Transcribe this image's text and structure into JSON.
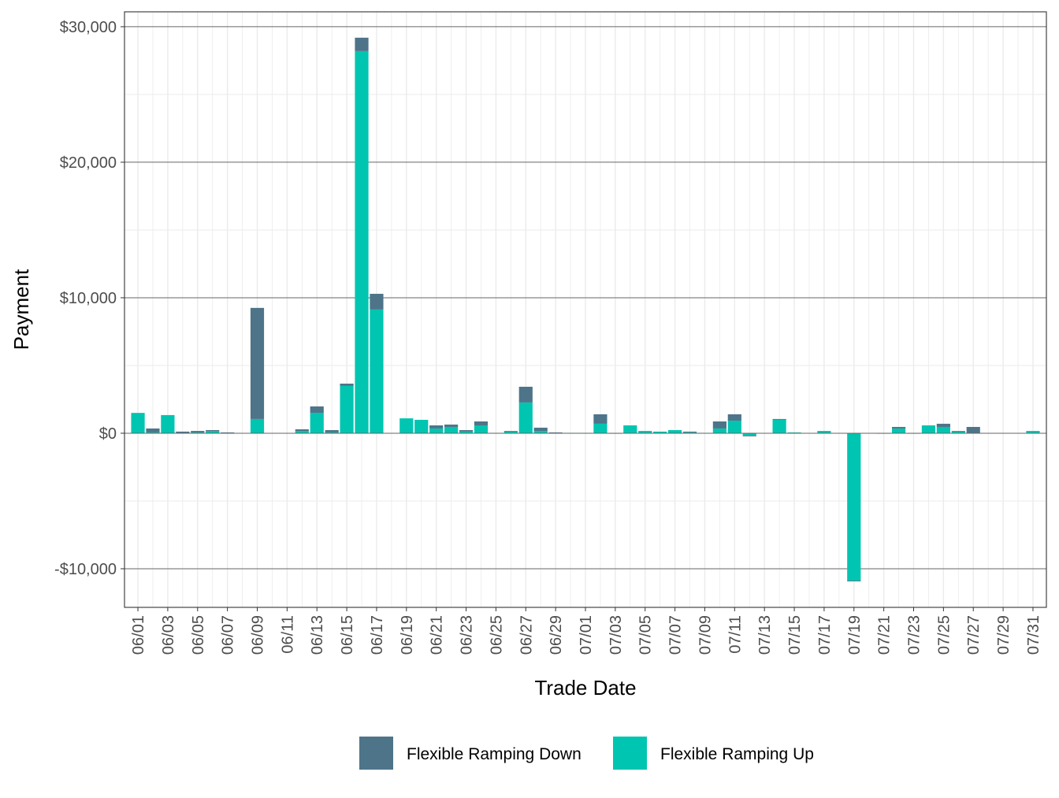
{
  "chart_data": {
    "type": "bar",
    "stacked": true,
    "title": "",
    "xlabel": "Trade Date",
    "ylabel": "Payment",
    "ylim": [
      -12850,
      31100
    ],
    "yticks": [
      -10000,
      0,
      10000,
      20000,
      30000
    ],
    "ytick_labels": [
      "-$10,000",
      "$0",
      "$10,000",
      "$20,000",
      "$30,000"
    ],
    "grid": true,
    "legend_position": "bottom",
    "categories": [
      "06/01",
      "06/02",
      "06/03",
      "06/04",
      "06/05",
      "06/06",
      "06/07",
      "06/08",
      "06/09",
      "06/10",
      "06/11",
      "06/12",
      "06/13",
      "06/14",
      "06/15",
      "06/16",
      "06/17",
      "06/18",
      "06/19",
      "06/20",
      "06/21",
      "06/22",
      "06/23",
      "06/24",
      "06/25",
      "06/26",
      "06/27",
      "06/28",
      "06/29",
      "06/30",
      "07/01",
      "07/02",
      "07/03",
      "07/04",
      "07/05",
      "07/06",
      "07/07",
      "07/08",
      "07/09",
      "07/10",
      "07/11",
      "07/12",
      "07/13",
      "07/14",
      "07/15",
      "07/16",
      "07/17",
      "07/18",
      "07/19",
      "07/20",
      "07/21",
      "07/22",
      "07/23",
      "07/24",
      "07/25",
      "07/26",
      "07/27",
      "07/28",
      "07/29",
      "07/30",
      "07/31"
    ],
    "xtick_labels": [
      "06/01",
      "06/03",
      "06/05",
      "06/07",
      "06/09",
      "06/11",
      "06/13",
      "06/15",
      "06/17",
      "06/19",
      "06/21",
      "06/23",
      "06/25",
      "06/27",
      "06/29",
      "07/01",
      "07/03",
      "07/05",
      "07/07",
      "07/09",
      "07/11",
      "07/13",
      "07/15",
      "07/17",
      "07/19",
      "07/21",
      "07/23",
      "07/25",
      "07/27",
      "07/29",
      "07/31"
    ],
    "series": [
      {
        "name": "Flexible Ramping Up",
        "color": "#00C5B0",
        "values": [
          1500,
          60,
          1340,
          20,
          60,
          150,
          30,
          0,
          1050,
          20,
          0,
          170,
          1510,
          60,
          3490,
          28200,
          9130,
          0,
          1100,
          990,
          350,
          465,
          120,
          580,
          30,
          120,
          2270,
          170,
          0,
          30,
          30,
          700,
          0,
          580,
          170,
          120,
          230,
          60,
          30,
          350,
          930,
          -180,
          20,
          990,
          60,
          20,
          170,
          0,
          -10870,
          0,
          0,
          350,
          0,
          580,
          465,
          120,
          0,
          0,
          20,
          20,
          170
        ]
      },
      {
        "name": "Flexible Ramping Down",
        "color": "#4E7489",
        "values": [
          0,
          290,
          0,
          100,
          110,
          80,
          30,
          0,
          8200,
          0,
          0,
          120,
          470,
          170,
          170,
          990,
          1160,
          0,
          0,
          0,
          230,
          175,
          110,
          290,
          0,
          50,
          1160,
          240,
          60,
          0,
          0,
          700,
          10,
          0,
          0,
          0,
          0,
          60,
          0,
          520,
          470,
          -30,
          0,
          60,
          0,
          0,
          0,
          0,
          -60,
          0,
          10,
          115,
          10,
          0,
          235,
          50,
          465,
          0,
          0,
          0,
          0
        ]
      }
    ],
    "legend": [
      "Flexible Ramping Down",
      "Flexible Ramping Up"
    ]
  }
}
